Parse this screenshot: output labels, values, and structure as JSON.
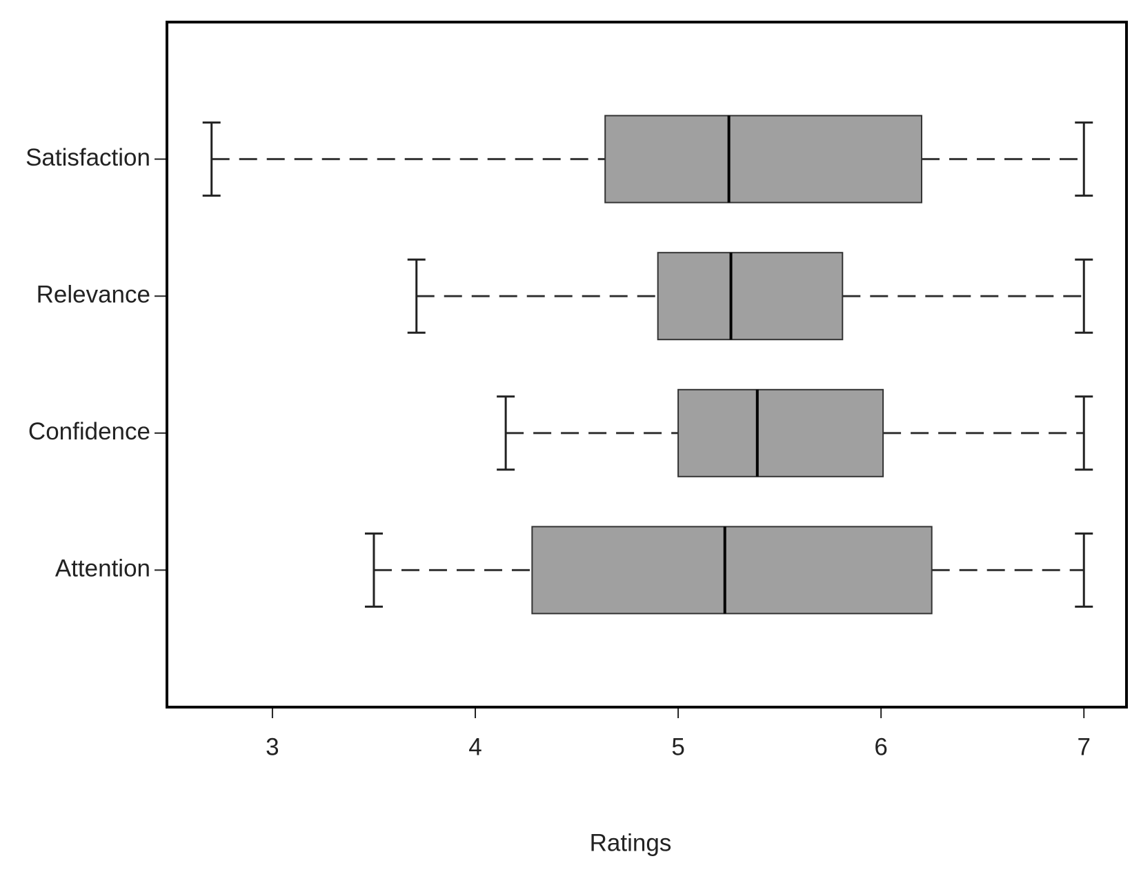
{
  "chart_data": {
    "type": "boxplot",
    "orientation": "horizontal",
    "x_label": "Ratings",
    "categories": [
      "Satisfaction",
      "Relevance",
      "Confidence",
      "Attention"
    ],
    "whisker_low": [
      2.7,
      3.71,
      4.15,
      3.5
    ],
    "q1": [
      4.64,
      4.9,
      5.0,
      4.28
    ],
    "median": [
      5.25,
      5.26,
      5.39,
      5.23
    ],
    "q3": [
      6.2,
      5.81,
      6.01,
      6.25
    ],
    "whisker_high": [
      7,
      7,
      7,
      7
    ],
    "color": "#a0a0a0",
    "xlim": [
      2.48,
      7.21
    ],
    "xticks": [
      3,
      4,
      5,
      6,
      7
    ]
  }
}
